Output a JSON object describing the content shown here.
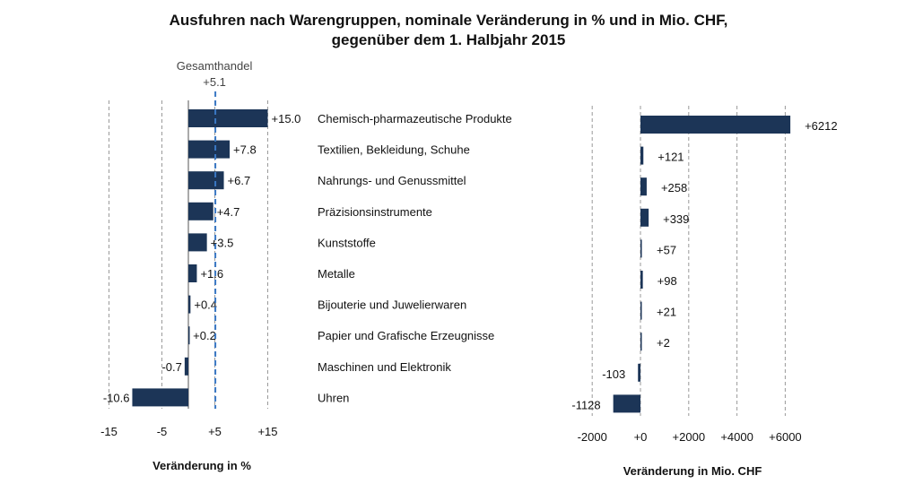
{
  "title": {
    "line1": "Ausfuhren nach Warengruppen, nominale Veränderung in % und in Mio. CHF,",
    "line2": "gegenüber dem 1. Halbjahr 2015"
  },
  "colors": {
    "bar": "#1c3557",
    "reference": "#3a78c4",
    "grid": "#9a9a9a",
    "axis": "#555555"
  },
  "chart_data": [
    {
      "type": "bar",
      "orientation": "horizontal",
      "xlabel": "Veränderung in %",
      "ylabel": "",
      "xlim": [
        -15,
        20
      ],
      "xticks": [
        {
          "value": -15,
          "label": "-15"
        },
        {
          "value": -5,
          "label": "-5"
        },
        {
          "value": 5,
          "label": "+5"
        },
        {
          "value": 15,
          "label": "+15"
        }
      ],
      "grid": "vertical-dashed",
      "reference_line": {
        "name": "Gesamthandel",
        "value": 5.1,
        "label": "+5.1"
      },
      "categories": [
        "Chemisch-pharmazeutische Produkte",
        "Textilien, Bekleidung, Schuhe",
        "Nahrungs- und Genussmittel",
        "Präzisionsinstrumente",
        "Kunststoffe",
        "Metalle",
        "Bijouterie und Juwelierwaren",
        "Papier und Grafische Erzeugnisse",
        "Maschinen und Elektronik",
        "Uhren"
      ],
      "values": [
        15.0,
        7.8,
        6.7,
        4.7,
        3.5,
        1.6,
        0.4,
        0.2,
        -0.7,
        -10.6
      ],
      "value_labels": [
        "+15.0",
        "+7.8",
        "+6.7",
        "+4.7",
        "+3.5",
        "+1.6",
        "+0.4",
        "+0.2",
        "-0.7",
        "-10.6"
      ]
    },
    {
      "type": "bar",
      "orientation": "horizontal",
      "xlabel": "Veränderung in Mio. CHF",
      "ylabel": "",
      "xlim": [
        -2000,
        7200
      ],
      "xticks": [
        {
          "value": -2000,
          "label": "-2000"
        },
        {
          "value": 0,
          "label": "+0"
        },
        {
          "value": 2000,
          "label": "+2000"
        },
        {
          "value": 4000,
          "label": "+4000"
        },
        {
          "value": 6000,
          "label": "+6000"
        }
      ],
      "grid": "vertical-dashed",
      "values": [
        6212,
        121,
        258,
        339,
        57,
        98,
        21,
        2,
        -103,
        -1128
      ],
      "value_labels": [
        "+6212",
        "+121",
        "+258",
        "+339",
        "+57",
        "+98",
        "+21",
        "+2",
        "-103",
        "-1128"
      ]
    }
  ]
}
